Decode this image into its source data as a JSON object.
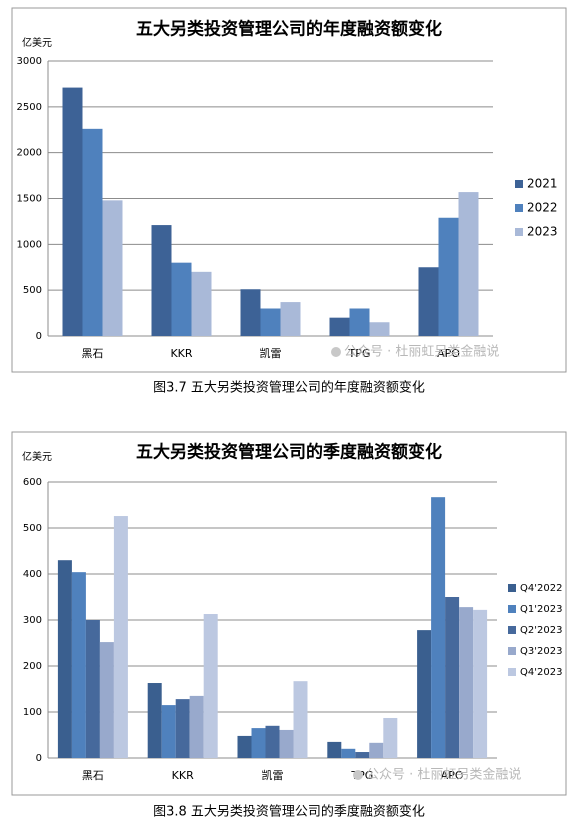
{
  "chart_data": [
    {
      "type": "bar",
      "title": "五大另类投资管理公司的年度融资额变化",
      "ylabel": "亿美元",
      "caption": "图3.7 五大另类投资管理公司的年度融资额变化",
      "watermark": "公众号 · 杜丽虹另类金融说",
      "categories": [
        "黑石",
        "KKR",
        "凯雷",
        "TPG",
        "APO"
      ],
      "series": [
        {
          "name": "2021",
          "color": "#3d6296",
          "values": [
            2710,
            1210,
            510,
            200,
            750
          ]
        },
        {
          "name": "2022",
          "color": "#4f81bd",
          "values": [
            2260,
            800,
            300,
            300,
            1290
          ]
        },
        {
          "name": "2023",
          "color": "#a9b9d8",
          "values": [
            1480,
            700,
            370,
            150,
            1570
          ]
        }
      ],
      "ylim": [
        0,
        3000
      ],
      "yticks": [
        0,
        500,
        1000,
        1500,
        2000,
        2500,
        3000
      ],
      "grid": true,
      "legend": "right"
    },
    {
      "type": "bar",
      "title": "五大另类投资管理公司的季度融资额变化",
      "ylabel": "亿美元",
      "caption": "图3.8 五大另类投资管理公司的季度融资额变化",
      "watermark": "公众号 · 杜丽虹另类金融说",
      "categories": [
        "黑石",
        "KKR",
        "凯雷",
        "TPG",
        "APO"
      ],
      "series": [
        {
          "name": "Q4'2022",
          "color": "#3a5f8f",
          "values": [
            430,
            163,
            48,
            35,
            278
          ]
        },
        {
          "name": "Q1'2023",
          "color": "#4f81bd",
          "values": [
            404,
            115,
            65,
            20,
            567
          ]
        },
        {
          "name": "Q2'2023",
          "color": "#46699c",
          "values": [
            300,
            128,
            70,
            13,
            350
          ]
        },
        {
          "name": "Q3'2023",
          "color": "#98a9cc",
          "values": [
            252,
            135,
            61,
            33,
            328
          ]
        },
        {
          "name": "Q4'2023",
          "color": "#bcc8e1",
          "values": [
            526,
            313,
            167,
            87,
            322
          ]
        }
      ],
      "ylim": [
        0,
        600
      ],
      "yticks": [
        0,
        100,
        200,
        300,
        400,
        500,
        600
      ],
      "grid": true,
      "legend": "right"
    }
  ]
}
